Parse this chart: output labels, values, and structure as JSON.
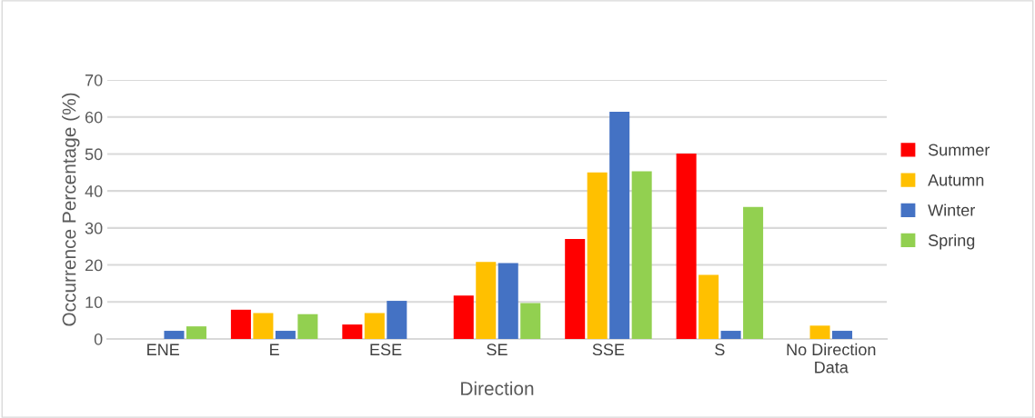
{
  "chart_data": {
    "type": "bar",
    "xlabel": "Direction",
    "ylabel": "Occurrence Percentage (%)",
    "categories": [
      "ENE",
      "E",
      "ESE",
      "SE",
      "SSE",
      "S",
      "No Direction\nData"
    ],
    "series": [
      {
        "name": "Summer",
        "color": "#ff0000",
        "values": [
          0,
          7.9,
          3.9,
          11.7,
          27.0,
          50.1,
          0
        ]
      },
      {
        "name": "Autumn",
        "color": "#ffc000",
        "values": [
          0,
          7.0,
          7.0,
          20.8,
          45.0,
          17.3,
          3.6
        ]
      },
      {
        "name": "Winter",
        "color": "#4472c4",
        "values": [
          2.2,
          2.2,
          10.3,
          20.5,
          61.4,
          2.2,
          2.2
        ]
      },
      {
        "name": "Spring",
        "color": "#92d050",
        "values": [
          3.4,
          6.7,
          0,
          9.7,
          45.3,
          35.7,
          0
        ]
      }
    ],
    "ylim": [
      0,
      70
    ],
    "yticks": [
      0,
      10,
      20,
      30,
      40,
      50,
      60,
      70
    ],
    "grid": "y",
    "legend": "right"
  }
}
